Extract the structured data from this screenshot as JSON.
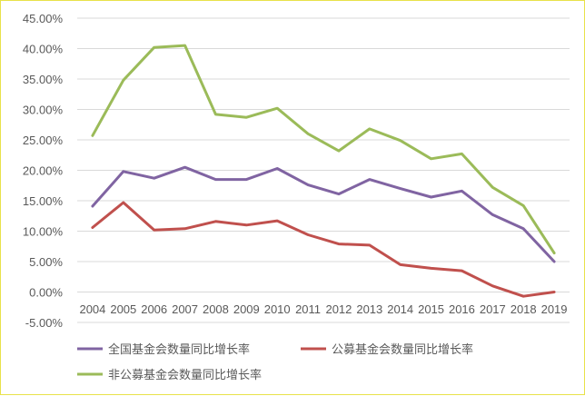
{
  "chart_data": {
    "type": "line",
    "title": "",
    "xlabel": "",
    "ylabel": "",
    "x": [
      "2004",
      "2005",
      "2006",
      "2007",
      "2008",
      "2009",
      "2010",
      "2011",
      "2012",
      "2013",
      "2014",
      "2015",
      "2016",
      "2017",
      "2018",
      "2019"
    ],
    "ylim": [
      -5,
      45
    ],
    "yticks": [
      -5,
      0,
      5,
      10,
      15,
      20,
      25,
      30,
      35,
      40,
      45
    ],
    "ytick_labels": [
      "-5.00%",
      "0.00%",
      "5.00%",
      "10.00%",
      "15.00%",
      "20.00%",
      "25.00%",
      "30.00%",
      "35.00%",
      "40.00%",
      "45.00%"
    ],
    "grid": true,
    "legend_position": "bottom",
    "series": [
      {
        "name": "全国基金会数量同比增长率",
        "color": "#8064a2",
        "values": [
          14.1,
          19.8,
          18.7,
          20.5,
          18.5,
          18.5,
          20.3,
          17.6,
          16.1,
          18.5,
          17.0,
          15.6,
          16.6,
          12.7,
          10.4,
          5.0
        ]
      },
      {
        "name": "公募基金会数量同比增长率",
        "color": "#c0504d",
        "values": [
          10.6,
          14.7,
          10.2,
          10.4,
          11.6,
          11.0,
          11.7,
          9.4,
          7.9,
          7.7,
          4.5,
          3.9,
          3.5,
          1.0,
          -0.7,
          0.0
        ]
      },
      {
        "name": "非公募基金会数量同比增长率",
        "color": "#9bbb59",
        "values": [
          25.7,
          34.8,
          40.2,
          40.5,
          29.2,
          28.7,
          30.2,
          26.0,
          23.2,
          26.8,
          24.9,
          21.9,
          22.7,
          17.2,
          14.2,
          6.4
        ]
      }
    ]
  }
}
